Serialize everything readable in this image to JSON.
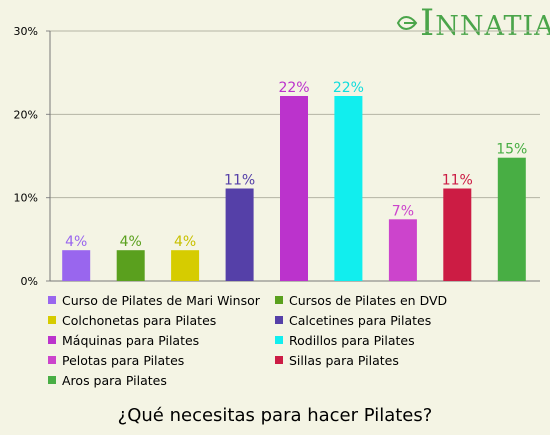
{
  "brand": {
    "name": "INNATIA",
    "accent": "#4aa54a"
  },
  "chart_data": {
    "type": "bar",
    "title": "¿Qué necesitas para hacer Pilates?",
    "xlabel": "",
    "ylabel": "",
    "ylim": [
      0,
      30
    ],
    "yticks": [
      "0%",
      "10%",
      "20%",
      "30%"
    ],
    "grid": true,
    "legend_position": "bottom",
    "categories": [
      "Curso de Pilates de Mari Winsor",
      "Cursos de Pilates en DVD",
      "Colchonetas para Pilates",
      "Calcetines para Pilates",
      "Máquinas para Pilates",
      "Rodillos para Pilates",
      "Pelotas para Pilates",
      "Sillas para Pilates",
      "Aros para Pilates"
    ],
    "values": [
      3.7,
      3.7,
      3.7,
      11.1,
      22.2,
      22.2,
      7.4,
      11.1,
      14.8
    ],
    "value_labels": [
      "4%",
      "4%",
      "4%",
      "11%",
      "22%",
      "22%",
      "7%",
      "11%",
      "15%"
    ],
    "colors": [
      "#9966ee",
      "#5aa01e",
      "#d6cc00",
      "#5540a8",
      "#bb33cc",
      "#11eeee",
      "#cc44cc",
      "#cc1c44",
      "#48ae44"
    ],
    "label_colors": [
      "#9966ee",
      "#5aa01e",
      "#c8c000",
      "#5540a8",
      "#bb33cc",
      "#11dddd",
      "#cc44cc",
      "#cc1c44",
      "#48ae44"
    ]
  }
}
